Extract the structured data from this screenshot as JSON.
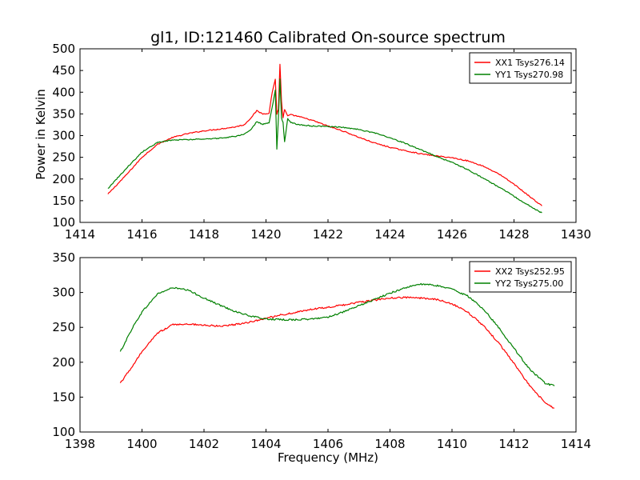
{
  "figure": {
    "title": "gl1, ID:121460 Calibrated On-source spectrum",
    "xlabel": "Frequency (MHz)",
    "ylabel": "Power in Kelvin"
  },
  "chart_data": [
    {
      "type": "line",
      "title": "gl1, ID:121460 Calibrated On-source spectrum",
      "xlabel": "",
      "ylabel": "Power in Kelvin",
      "xlim": [
        1414,
        1430
      ],
      "ylim": [
        100,
        500
      ],
      "xticks": [
        1414,
        1416,
        1418,
        1420,
        1422,
        1424,
        1426,
        1428,
        1430
      ],
      "yticks": [
        100,
        150,
        200,
        250,
        300,
        350,
        400,
        450,
        500
      ],
      "grid": false,
      "legend_position": "top-right",
      "series": [
        {
          "name": "XX1 Tsys276.14",
          "color": "#ff0000",
          "x": [
            1414.9,
            1415.5,
            1416.0,
            1416.5,
            1417.0,
            1417.5,
            1418.0,
            1418.5,
            1419.0,
            1419.3,
            1419.5,
            1419.7,
            1419.9,
            1420.1,
            1420.2,
            1420.3,
            1420.35,
            1420.4,
            1420.45,
            1420.5,
            1420.55,
            1420.6,
            1420.7,
            1420.8,
            1421.0,
            1421.5,
            1422.0,
            1422.5,
            1423.0,
            1423.5,
            1424.0,
            1424.5,
            1425.0,
            1425.5,
            1426.0,
            1426.5,
            1427.0,
            1427.5,
            1428.0,
            1428.5,
            1428.9
          ],
          "y": [
            165,
            210,
            250,
            280,
            296,
            305,
            311,
            315,
            320,
            325,
            340,
            357,
            350,
            352,
            400,
            430,
            350,
            360,
            465,
            380,
            340,
            360,
            345,
            348,
            345,
            335,
            322,
            310,
            296,
            283,
            273,
            265,
            258,
            253,
            249,
            242,
            230,
            212,
            188,
            160,
            138
          ]
        },
        {
          "name": "YY1 Tsys270.98",
          "color": "#008000",
          "x": [
            1414.9,
            1415.5,
            1416.0,
            1416.5,
            1417.0,
            1417.5,
            1418.0,
            1418.5,
            1419.0,
            1419.3,
            1419.5,
            1419.7,
            1419.9,
            1420.1,
            1420.2,
            1420.3,
            1420.35,
            1420.4,
            1420.45,
            1420.5,
            1420.55,
            1420.6,
            1420.7,
            1420.8,
            1421.0,
            1421.5,
            1422.0,
            1422.5,
            1423.0,
            1423.5,
            1424.0,
            1424.5,
            1425.0,
            1425.5,
            1426.0,
            1426.5,
            1427.0,
            1427.5,
            1428.0,
            1428.5,
            1428.9
          ],
          "y": [
            178,
            225,
            262,
            284,
            290,
            291,
            292,
            294,
            298,
            303,
            312,
            332,
            326,
            330,
            365,
            405,
            268,
            340,
            430,
            340,
            330,
            285,
            340,
            330,
            326,
            322,
            321,
            319,
            314,
            306,
            295,
            282,
            267,
            252,
            238,
            222,
            202,
            182,
            160,
            138,
            122
          ]
        }
      ]
    },
    {
      "type": "line",
      "title": "",
      "xlabel": "Frequency (MHz)",
      "ylabel": "",
      "xlim": [
        1398,
        1414
      ],
      "ylim": [
        100,
        350
      ],
      "xticks": [
        1398,
        1400,
        1402,
        1404,
        1406,
        1408,
        1410,
        1412,
        1414
      ],
      "yticks": [
        100,
        150,
        200,
        250,
        300,
        350
      ],
      "grid": false,
      "legend_position": "top-right",
      "series": [
        {
          "name": "XX2 Tsys252.95",
          "color": "#ff0000",
          "x": [
            1399.3,
            1399.7,
            1400.0,
            1400.5,
            1401.0,
            1401.5,
            1402.0,
            1402.5,
            1403.0,
            1403.5,
            1404.0,
            1404.5,
            1405.0,
            1405.5,
            1406.0,
            1406.5,
            1407.0,
            1407.5,
            1408.0,
            1408.5,
            1409.0,
            1409.5,
            1410.0,
            1410.5,
            1411.0,
            1411.5,
            1412.0,
            1412.5,
            1413.0,
            1413.3
          ],
          "y": [
            170,
            195,
            215,
            242,
            254,
            255,
            253,
            252,
            254,
            258,
            263,
            268,
            272,
            276,
            279,
            282,
            286,
            289,
            292,
            293,
            292,
            290,
            284,
            272,
            253,
            228,
            198,
            167,
            142,
            134
          ]
        },
        {
          "name": "YY2 Tsys275.00",
          "color": "#008000",
          "x": [
            1399.3,
            1399.7,
            1400.0,
            1400.5,
            1401.0,
            1401.5,
            1402.0,
            1402.5,
            1403.0,
            1403.5,
            1404.0,
            1404.5,
            1405.0,
            1405.5,
            1406.0,
            1406.5,
            1407.0,
            1407.5,
            1408.0,
            1408.5,
            1409.0,
            1409.5,
            1410.0,
            1410.5,
            1411.0,
            1411.5,
            1412.0,
            1412.5,
            1413.0,
            1413.3
          ],
          "y": [
            215,
            250,
            272,
            298,
            307,
            303,
            292,
            282,
            273,
            266,
            262,
            261,
            261,
            262,
            265,
            272,
            281,
            290,
            299,
            307,
            312,
            310,
            305,
            295,
            277,
            250,
            220,
            190,
            170,
            166
          ]
        }
      ]
    }
  ]
}
